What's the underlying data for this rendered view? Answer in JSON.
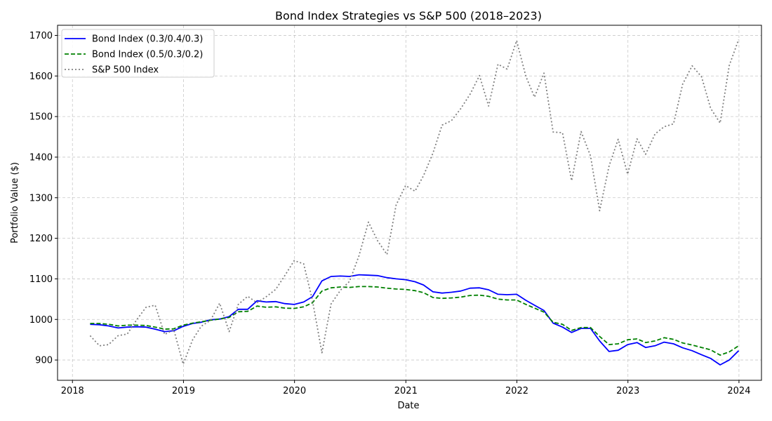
{
  "chart_data": {
    "type": "line",
    "title": "Bond Index Strategies vs S&P 500 (2018–2023)",
    "xlabel": "Date",
    "ylabel": "Portfolio Value ($)",
    "xlim": [
      "2017-11-13",
      "2024-03-15"
    ],
    "ylim": [
      850,
      1725
    ],
    "x_ticks": [
      "2018",
      "2019",
      "2020",
      "2021",
      "2022",
      "2023",
      "2024"
    ],
    "y_ticks": [
      900,
      1000,
      1100,
      1200,
      1300,
      1400,
      1500,
      1600,
      1700
    ],
    "grid": true,
    "legend_position": "top-left",
    "x": [
      "2018-02-28",
      "2018-03-31",
      "2018-04-30",
      "2018-05-31",
      "2018-06-30",
      "2018-07-31",
      "2018-08-31",
      "2018-09-30",
      "2018-10-31",
      "2018-11-30",
      "2018-12-31",
      "2019-01-31",
      "2019-02-28",
      "2019-03-31",
      "2019-04-30",
      "2019-05-31",
      "2019-06-30",
      "2019-07-31",
      "2019-08-31",
      "2019-09-30",
      "2019-10-31",
      "2019-11-30",
      "2019-12-31",
      "2020-01-31",
      "2020-02-29",
      "2020-03-31",
      "2020-04-30",
      "2020-05-31",
      "2020-06-30",
      "2020-07-31",
      "2020-08-31",
      "2020-09-30",
      "2020-10-31",
      "2020-11-30",
      "2020-12-31",
      "2021-01-31",
      "2021-02-28",
      "2021-03-31",
      "2021-04-30",
      "2021-05-31",
      "2021-06-30",
      "2021-07-31",
      "2021-08-31",
      "2021-09-30",
      "2021-10-31",
      "2021-11-30",
      "2021-12-31",
      "2022-01-31",
      "2022-02-28",
      "2022-03-31",
      "2022-04-30",
      "2022-05-31",
      "2022-06-30",
      "2022-07-31",
      "2022-08-31",
      "2022-09-30",
      "2022-10-31",
      "2022-11-30",
      "2022-12-31",
      "2023-01-31",
      "2023-02-28",
      "2023-03-31",
      "2023-04-30",
      "2023-05-31",
      "2023-06-30",
      "2023-07-31",
      "2023-08-31",
      "2023-09-30",
      "2023-10-31",
      "2023-11-30",
      "2023-12-31"
    ],
    "series": [
      {
        "name": "Bond Index (0.3/0.4/0.3)",
        "color": "#0000ff",
        "style": "solid",
        "values": [
          988,
          987,
          984,
          979,
          981,
          982,
          981,
          976,
          970,
          972,
          983,
          990,
          993,
          999,
          1001,
          1007,
          1025,
          1025,
          1046,
          1043,
          1044,
          1039,
          1037,
          1043,
          1056,
          1095,
          1106,
          1107,
          1106,
          1110,
          1109,
          1108,
          1103,
          1100,
          1098,
          1093,
          1085,
          1068,
          1065,
          1067,
          1070,
          1077,
          1078,
          1073,
          1062,
          1061,
          1062,
          1047,
          1035,
          1022,
          991,
          981,
          968,
          978,
          978,
          947,
          921,
          924,
          938,
          943,
          931,
          935,
          944,
          940,
          930,
          923,
          913,
          904,
          888,
          900,
          923
        ]
      },
      {
        "name": "Bond Index (0.5/0.3/0.2)",
        "color": "#008000",
        "style": "dashed",
        "values": [
          990,
          990,
          988,
          984,
          986,
          986,
          985,
          981,
          976,
          977,
          986,
          991,
          994,
          998,
          1001,
          1005,
          1019,
          1020,
          1033,
          1030,
          1031,
          1028,
          1027,
          1031,
          1041,
          1070,
          1078,
          1080,
          1079,
          1081,
          1081,
          1080,
          1077,
          1075,
          1074,
          1071,
          1066,
          1054,
          1052,
          1053,
          1055,
          1059,
          1060,
          1057,
          1050,
          1048,
          1048,
          1037,
          1028,
          1018,
          993,
          988,
          973,
          980,
          980,
          958,
          938,
          940,
          950,
          952,
          943,
          947,
          955,
          951,
          942,
          937,
          931,
          925,
          912,
          920,
          935
        ]
      },
      {
        "name": "S&P 500 Index",
        "color": "#808080",
        "style": "dotted",
        "values": [
          960,
          935,
          938,
          960,
          964,
          999,
          1030,
          1035,
          963,
          975,
          890,
          950,
          983,
          998,
          1040,
          970,
          1037,
          1057,
          1041,
          1056,
          1074,
          1108,
          1145,
          1137,
          1047,
          918,
          1038,
          1072,
          1094,
          1157,
          1240,
          1194,
          1160,
          1282,
          1330,
          1316,
          1354,
          1410,
          1479,
          1490,
          1519,
          1555,
          1601,
          1526,
          1629,
          1617,
          1687,
          1598,
          1548,
          1607,
          1462,
          1460,
          1342,
          1463,
          1403,
          1268,
          1378,
          1444,
          1358,
          1445,
          1407,
          1457,
          1475,
          1482,
          1580,
          1625,
          1598,
          1520,
          1484,
          1626,
          1690
        ]
      }
    ]
  }
}
